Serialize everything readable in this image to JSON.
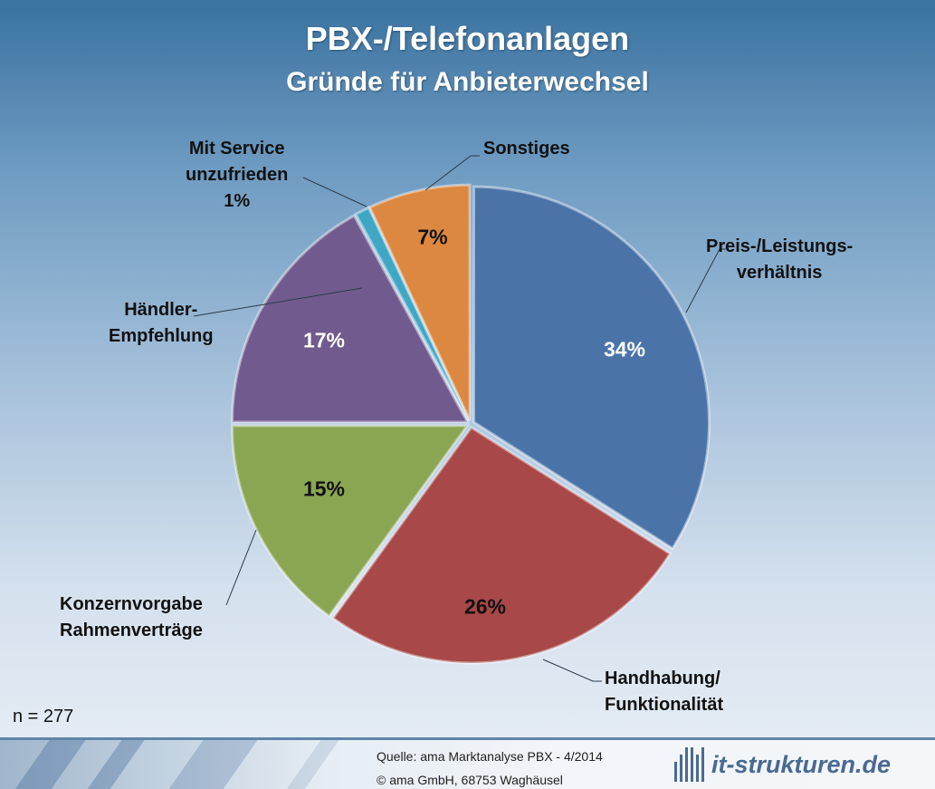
{
  "chart_data": {
    "type": "pie",
    "title": "PBX-/Telefonanlagen",
    "subtitle": "Gründe für Anbieterwechsel",
    "slices": [
      {
        "label": "Preis-/Leistungs-verhältnis",
        "value": 34,
        "display": "34%",
        "color": "#4a74a8"
      },
      {
        "label": "Handhabung/ Funktionalität",
        "value": 26,
        "display": "26%",
        "color": "#a84848"
      },
      {
        "label": "Konzernvorgabe Rahmenverträge",
        "value": 15,
        "display": "15%",
        "color": "#8aa652"
      },
      {
        "label": "Händler-Empfehlung",
        "value": 17,
        "display": "17%",
        "color": "#715a8e"
      },
      {
        "label": "Mit Service unzufrieden",
        "value": 1,
        "display": "1%",
        "color": "#3fa7c4"
      },
      {
        "label": "Sonstiges",
        "value": 7,
        "display": "7%",
        "color": "#dc8840"
      }
    ],
    "labels_lines": [
      [
        "Preis-/Leistungs-",
        "verhältnis"
      ],
      [
        "Handhabung/",
        "Funktionalität"
      ],
      [
        "Konzernvorgabe",
        "Rahmenverträge"
      ],
      [
        "Händler-",
        "Empfehlung"
      ],
      [
        "Mit Service",
        "unzufrieden"
      ],
      [
        "Sonstiges"
      ]
    ],
    "n_label": "n = 277"
  },
  "footer": {
    "source": "Quelle: ama Marktanalyse PBX  - 4/2014",
    "copyright": "© ama GmbH, 68753 Waghäusel",
    "logo_text": "it-strukturen.de"
  }
}
